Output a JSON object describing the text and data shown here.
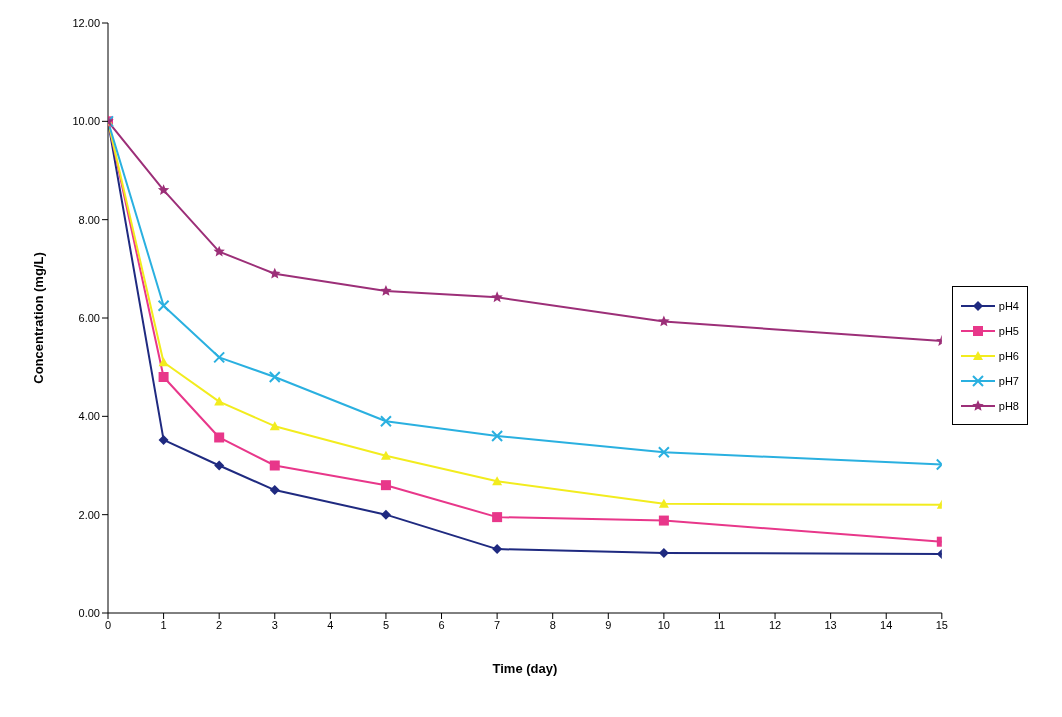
{
  "chart_data": {
    "type": "line",
    "xlabel": "Time (day)",
    "ylabel": "Concentration (mg/L)",
    "x": [
      0,
      1,
      2,
      3,
      5,
      7,
      10,
      15
    ],
    "xlim": [
      0,
      15
    ],
    "xticks": [
      0,
      1,
      2,
      3,
      4,
      5,
      6,
      7,
      8,
      9,
      10,
      11,
      12,
      13,
      14,
      15
    ],
    "ylim": [
      0,
      12
    ],
    "yticks": [
      {
        "value": 0,
        "label": "0.00"
      },
      {
        "value": 2,
        "label": "2.00"
      },
      {
        "value": 4,
        "label": "4.00"
      },
      {
        "value": 6,
        "label": "6.00"
      },
      {
        "value": 8,
        "label": "8.00"
      },
      {
        "value": 10,
        "label": "10.00"
      },
      {
        "value": 12,
        "label": "12.00"
      }
    ],
    "grid": false,
    "legend": "right",
    "line_style": "solid",
    "series": [
      {
        "name": "pH4",
        "color": "#1f2a80",
        "marker": "diamond",
        "values": [
          10,
          3.52,
          3.0,
          2.5,
          2.0,
          1.3,
          1.22,
          1.2
        ]
      },
      {
        "name": "pH5",
        "color": "#e8378a",
        "marker": "square",
        "values": [
          10,
          4.8,
          3.57,
          3.0,
          2.6,
          1.95,
          1.88,
          1.45
        ]
      },
      {
        "name": "pH6",
        "color": "#f2ec1e",
        "marker": "triangle",
        "values": [
          10,
          5.1,
          4.3,
          3.8,
          3.2,
          2.68,
          2.22,
          2.2
        ]
      },
      {
        "name": "pH7",
        "color": "#2ab0e0",
        "marker": "cross",
        "values": [
          10,
          6.25,
          5.2,
          4.8,
          3.9,
          3.6,
          3.27,
          3.02
        ]
      },
      {
        "name": "pH8",
        "color": "#9c2f78",
        "marker": "star",
        "values": [
          10,
          8.6,
          7.35,
          6.9,
          6.55,
          6.42,
          5.93,
          5.53
        ]
      }
    ]
  }
}
